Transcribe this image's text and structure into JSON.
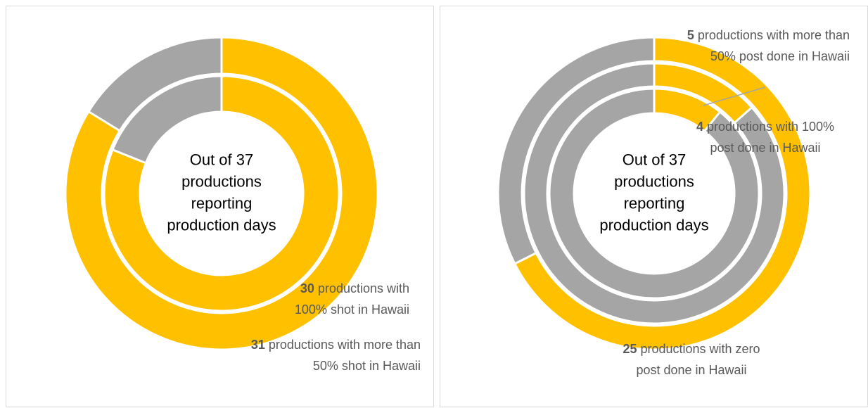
{
  "chart_data": [
    {
      "type": "donut",
      "center_text": [
        "Out of 37",
        "productions",
        "reporting",
        "production days"
      ],
      "colors": [
        "#FFC000",
        "#A5A5A5"
      ],
      "rings": [
        {
          "values": [
            31,
            6
          ],
          "label": [
            "productions with more than",
            "50% shot in Hawaii"
          ]
        },
        {
          "values": [
            30,
            7
          ],
          "label": [
            "productions with",
            "100% shot in Hawaii"
          ]
        }
      ]
    },
    {
      "type": "donut",
      "center_text": [
        "Out of 37",
        "productions",
        "reporting",
        "production days"
      ],
      "colors": [
        "#FFC000",
        "#A5A5A5"
      ],
      "rings": [
        {
          "values": [
            25,
            12
          ],
          "label": [
            "productions with zero",
            "post done in Hawaii"
          ]
        },
        {
          "values": [
            5,
            32
          ],
          "label": [
            "productions with more than",
            "50% post done in Hawaii"
          ]
        },
        {
          "values": [
            4,
            33
          ],
          "label": [
            "productions with 100%",
            "post done in Hawaii"
          ]
        }
      ]
    }
  ]
}
